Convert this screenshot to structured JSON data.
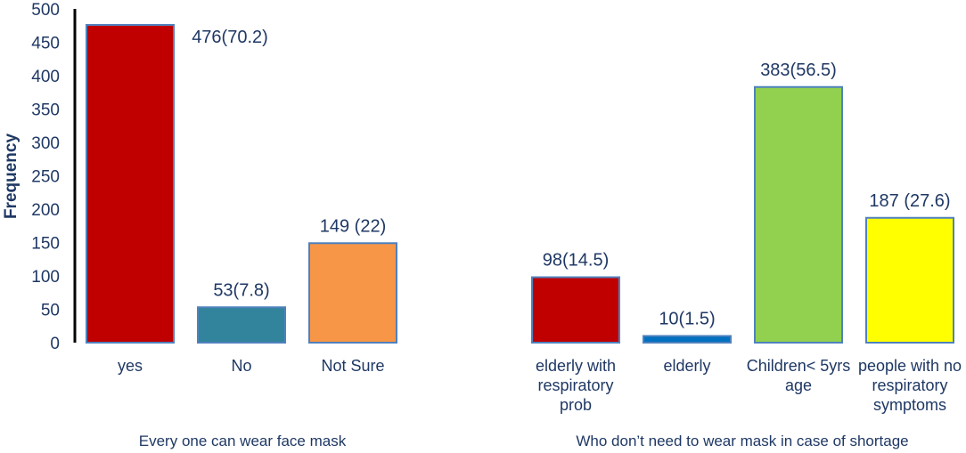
{
  "chart_data": {
    "type": "bar",
    "ylabel": "Frequency",
    "ylim": [
      0,
      500
    ],
    "yticks": [
      0,
      50,
      100,
      150,
      200,
      250,
      300,
      350,
      400,
      450,
      500
    ],
    "yticks_labels": [
      "0",
      "50",
      "100",
      "150",
      "200",
      "250",
      "300",
      "350",
      "400",
      "450",
      "500"
    ],
    "grid": false,
    "groups": [
      {
        "label": "Every one can wear face mask",
        "bars": [
          {
            "category": [
              "yes"
            ],
            "value": 476,
            "label": "476(70.2)",
            "color": "#c00000"
          },
          {
            "category": [
              "No"
            ],
            "value": 53,
            "label": "53(7.8)",
            "color": "#31849b"
          },
          {
            "category": [
              "Not Sure"
            ],
            "value": 149,
            "label": "149 (22)",
            "color": "#f79646"
          }
        ]
      },
      {
        "label": "Who don’t need to wear mask in case of shortage",
        "bars": [
          {
            "category": [
              "elderly with",
              "respiratory",
              "prob"
            ],
            "value": 98,
            "label": "98(14.5)",
            "color": "#c00000"
          },
          {
            "category": [
              "elderly"
            ],
            "value": 10,
            "label": "10(1.5)",
            "color": "#0070c0"
          },
          {
            "category": [
              "Children< 5yrs",
              "age"
            ],
            "value": 383,
            "label": "383(56.5)",
            "color": "#92d050"
          },
          {
            "category": [
              "people with no",
              "respiratory",
              "symptoms"
            ],
            "value": 187,
            "label": "187 (27.6)",
            "color": "#ffff00"
          }
        ]
      }
    ],
    "bar_border_color": "#4f81bd",
    "text_color": "#1f3864"
  }
}
